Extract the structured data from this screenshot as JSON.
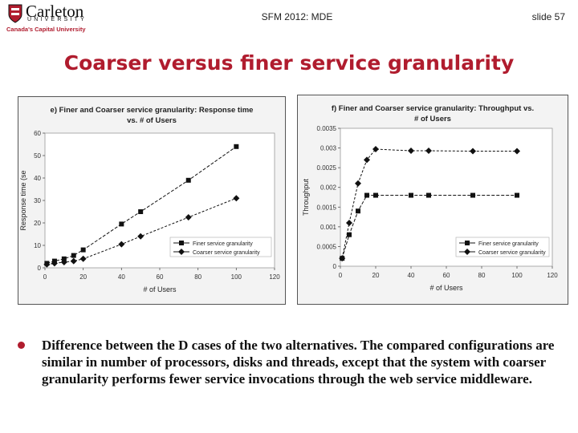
{
  "header": {
    "logo_name": "Carleton",
    "logo_univ": "UNIVERSITY",
    "logo_tag": "Canada's Capital University",
    "course": "SFM 2012: MDE",
    "slide": "slide 57"
  },
  "title": "Coarser versus finer service granularity",
  "bullet": "Difference between the D cases of the two alternatives. The compared configurations are similar in number of processors, disks and threads, except that the system with coarser granularity performs fewer service invocations through the web service middleware.",
  "colors": {
    "accent": "#b01c2e",
    "plot_bg": "#ffffff",
    "panel_bg": "#f3f3f3"
  },
  "chart_data": [
    {
      "type": "line",
      "title_line1": "e) Finer and Coarser service granularity: Response time",
      "title_line2": "vs. # of Users",
      "xlabel": "# of Users",
      "ylabel": "Response time (se",
      "xlim": [
        0,
        120
      ],
      "ylim": [
        0,
        60
      ],
      "xticks": [
        0,
        20,
        40,
        60,
        80,
        100,
        120
      ],
      "yticks": [
        0,
        10,
        20,
        30,
        40,
        50,
        60
      ],
      "legend_position": "bottom-right",
      "series": [
        {
          "name": "Finer service granularity",
          "marker": "square",
          "x": [
            1,
            5,
            10,
            15,
            20,
            40,
            50,
            75,
            100
          ],
          "y": [
            2,
            3,
            4,
            5.5,
            8,
            19.5,
            25,
            39,
            54
          ]
        },
        {
          "name": "Coarser service granularity",
          "marker": "diamond",
          "x": [
            1,
            5,
            10,
            15,
            20,
            40,
            50,
            75,
            100
          ],
          "y": [
            1.5,
            2,
            2.5,
            3,
            4,
            10.5,
            14,
            22.5,
            31
          ]
        }
      ]
    },
    {
      "type": "line",
      "title_line1": "f) Finer and Coarser service granularity: Throughput vs.",
      "title_line2": "# of Users",
      "xlabel": "# of Users",
      "ylabel": "Throughput",
      "xlim": [
        0,
        120
      ],
      "ylim": [
        0,
        0.0035
      ],
      "xticks": [
        0,
        20,
        40,
        60,
        80,
        100,
        120
      ],
      "xtick_labels": [
        "0",
        "20",
        "40",
        "60",
        "80",
        "100",
        "120"
      ],
      "yticks": [
        0,
        0.0005,
        0.001,
        0.0015,
        0.002,
        0.0025,
        0.003,
        0.0035
      ],
      "ytick_labels": [
        "0",
        "0.0005",
        "0.001",
        "0.0015",
        "0.002",
        "0.0025",
        "0.003",
        "0.0035"
      ],
      "legend_position": "bottom-right",
      "series": [
        {
          "name": "Finer service granularity",
          "marker": "square",
          "x": [
            1,
            5,
            10,
            15,
            20,
            40,
            50,
            75,
            100
          ],
          "y": [
            0.0002,
            0.0008,
            0.0014,
            0.0018,
            0.0018,
            0.0018,
            0.0018,
            0.0018,
            0.0018
          ]
        },
        {
          "name": "Coarser service granularity",
          "marker": "diamond",
          "x": [
            1,
            5,
            10,
            15,
            20,
            40,
            50,
            75,
            100
          ],
          "y": [
            0.0002,
            0.0011,
            0.0021,
            0.0027,
            0.00297,
            0.00293,
            0.00293,
            0.00292,
            0.00292
          ]
        }
      ]
    }
  ]
}
